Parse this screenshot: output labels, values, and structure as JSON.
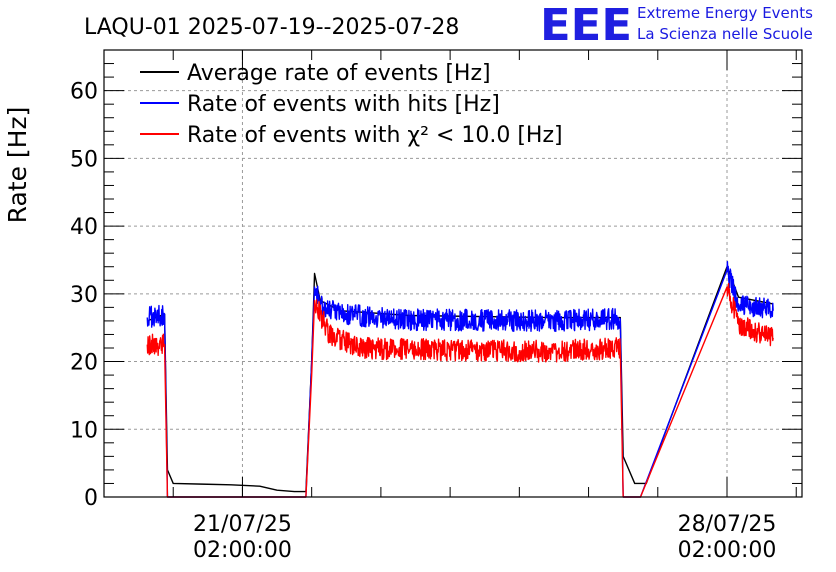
{
  "chart_data": {
    "type": "line",
    "title": "LAQU-01 2025-07-19--2025-07-28",
    "logo": {
      "text": "EEE",
      "line1": "Extreme Energy Events",
      "line2": "La Scienza nelle Scuole"
    },
    "ylabel": "Rate [Hz]",
    "ylim": [
      0,
      66
    ],
    "yticks": [
      0,
      10,
      20,
      30,
      40,
      50,
      60
    ],
    "xlim": [
      "2025-07-19 02:00",
      "2025-07-29 04:00"
    ],
    "xticks": [
      {
        "x": "2025-07-21 02:00",
        "date": "21/07/25",
        "time": "02:00:00"
      },
      {
        "x": "2025-07-28 02:00",
        "date": "28/07/25",
        "time": "02:00:00"
      }
    ],
    "grid": true,
    "legend_position": "top-left",
    "series": [
      {
        "name": "Average rate of events [Hz]",
        "color": "#000000",
        "noise": 0,
        "points": [
          [
            "2025-07-19 17:00",
            26.0
          ],
          [
            "2025-07-19 23:00",
            27.0
          ],
          [
            "2025-07-20 00:00",
            4.0
          ],
          [
            "2025-07-20 02:00",
            2.0
          ],
          [
            "2025-07-20 12:00",
            1.9
          ],
          [
            "2025-07-20 22:00",
            1.8
          ],
          [
            "2025-07-21 08:00",
            1.6
          ],
          [
            "2025-07-21 14:00",
            1.0
          ],
          [
            "2025-07-21 20:00",
            0.8
          ],
          [
            "2025-07-22 00:00",
            0.8
          ],
          [
            "2025-07-22 02:00",
            20.0
          ],
          [
            "2025-07-22 03:00",
            33.0
          ],
          [
            "2025-07-22 05:00",
            29.0
          ],
          [
            "2025-07-22 12:00",
            27.5
          ],
          [
            "2025-07-23 12:00",
            26.8
          ],
          [
            "2025-07-25 12:00",
            26.5
          ],
          [
            "2025-07-26 13:00",
            26.5
          ],
          [
            "2025-07-26 14:00",
            6.0
          ],
          [
            "2025-07-26 18:00",
            2.0
          ],
          [
            "2025-07-26 22:00",
            2.0
          ],
          [
            "2025-07-28 02:00",
            34.0
          ],
          [
            "2025-07-28 06:00",
            29.5
          ],
          [
            "2025-07-28 18:00",
            28.5
          ]
        ]
      },
      {
        "name": "Rate of events with hits [Hz]",
        "color": "#0000ff",
        "noise": 1.0,
        "points": [
          [
            "2025-07-19 17:00",
            26.5
          ],
          [
            "2025-07-19 23:00",
            27.0
          ],
          [
            "2025-07-20 00:00",
            0.0
          ],
          [
            "2025-07-22 00:00",
            0.0
          ],
          [
            "2025-07-22 02:00",
            20.0
          ],
          [
            "2025-07-22 03:00",
            31.0
          ],
          [
            "2025-07-22 06:00",
            28.0
          ],
          [
            "2025-07-22 12:00",
            27.0
          ],
          [
            "2025-07-23 12:00",
            26.2
          ],
          [
            "2025-07-25 12:00",
            26.0
          ],
          [
            "2025-07-26 13:00",
            26.3
          ],
          [
            "2025-07-26 14:00",
            0.0
          ],
          [
            "2025-07-26 20:00",
            0.0
          ],
          [
            "2025-07-28 02:00",
            33.5
          ],
          [
            "2025-07-28 06:00",
            28.5
          ],
          [
            "2025-07-28 18:00",
            27.5
          ]
        ]
      },
      {
        "name": "Rate of events with χ² < 10.0 [Hz]",
        "color": "#ff0000",
        "noise": 1.0,
        "points": [
          [
            "2025-07-19 17:00",
            22.5
          ],
          [
            "2025-07-19 23:00",
            22.5
          ],
          [
            "2025-07-20 00:00",
            0.0
          ],
          [
            "2025-07-22 00:00",
            0.0
          ],
          [
            "2025-07-22 02:00",
            18.0
          ],
          [
            "2025-07-22 03:00",
            29.0
          ],
          [
            "2025-07-22 08:00",
            24.0
          ],
          [
            "2025-07-22 18:00",
            22.0
          ],
          [
            "2025-07-23 12:00",
            21.8
          ],
          [
            "2025-07-25 12:00",
            21.5
          ],
          [
            "2025-07-26 13:00",
            22.0
          ],
          [
            "2025-07-26 14:00",
            0.0
          ],
          [
            "2025-07-26 20:00",
            0.0
          ],
          [
            "2025-07-28 02:00",
            31.0
          ],
          [
            "2025-07-28 06:00",
            25.5
          ],
          [
            "2025-07-28 18:00",
            23.5
          ]
        ]
      }
    ]
  }
}
